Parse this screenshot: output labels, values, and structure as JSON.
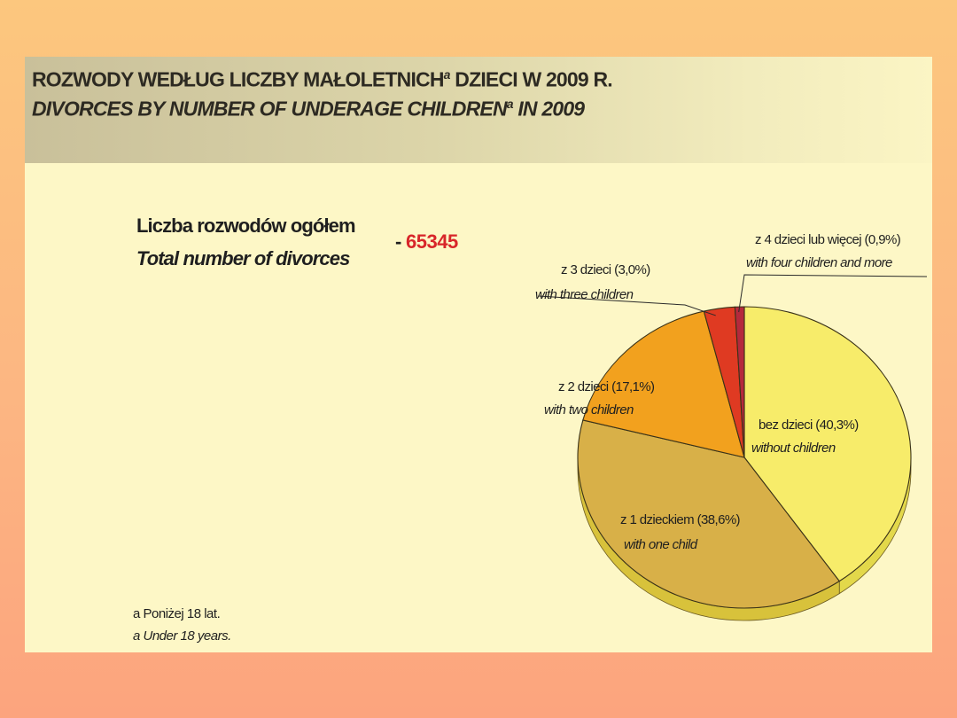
{
  "title": {
    "pl": "ROZWODY WEDŁUG LICZBY MAŁOLETNICH",
    "pl_after": " DZIECI W 2009 R.",
    "en": "DIVORCES BY NUMBER OF UNDERAGE CHILDREN",
    "en_after": " IN 2009",
    "footnote_mark": "a"
  },
  "total": {
    "label_pl": "Liczba rozwodów ogółem",
    "label_en": "Total number of divorces",
    "dash": "-",
    "value": "65345"
  },
  "footnote": {
    "pl": "a Poniżej 18 lat.",
    "en": "a Under 18 years."
  },
  "chart_data": {
    "type": "pie",
    "title": "DIVORCES BY NUMBER OF UNDERAGE CHILDREN IN 2009",
    "total": 65345,
    "slices": [
      {
        "label_pl": "bez dzieci (40,3%)",
        "label_en": "without children",
        "value": 40.3,
        "color": "#f7ec6a"
      },
      {
        "label_pl": "z 1 dzieckiem (38,6%)",
        "label_en": "with one child",
        "value": 38.6,
        "color": "#d8b048"
      },
      {
        "label_pl": "z 2 dzieci (17,1%)",
        "label_en": "with two children",
        "value": 17.1,
        "color": "#f2a11e"
      },
      {
        "label_pl": "z 3 dzieci (3,0%)",
        "label_en": "with three children",
        "value": 3.0,
        "color": "#df3a22"
      },
      {
        "label_pl": "z 4 dzieci lub więcej (0,9%)",
        "label_en": "with four children and more",
        "value": 0.9,
        "color": "#b5293c"
      }
    ]
  }
}
